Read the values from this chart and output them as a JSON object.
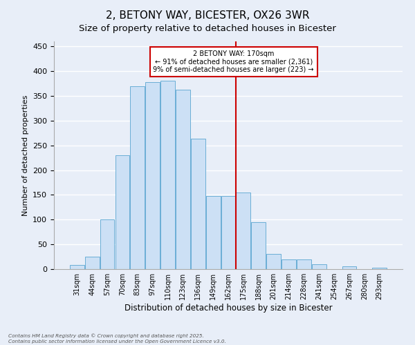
{
  "title": "2, BETONY WAY, BICESTER, OX26 3WR",
  "subtitle": "Size of property relative to detached houses in Bicester",
  "xlabel": "Distribution of detached houses by size in Bicester",
  "ylabel": "Number of detached properties",
  "categories": [
    "31sqm",
    "44sqm",
    "57sqm",
    "70sqm",
    "83sqm",
    "97sqm",
    "110sqm",
    "123sqm",
    "136sqm",
    "149sqm",
    "162sqm",
    "175sqm",
    "188sqm",
    "201sqm",
    "214sqm",
    "228sqm",
    "241sqm",
    "254sqm",
    "267sqm",
    "280sqm",
    "293sqm"
  ],
  "values": [
    8,
    25,
    100,
    230,
    370,
    378,
    380,
    362,
    263,
    148,
    148,
    155,
    95,
    30,
    20,
    20,
    10,
    0,
    5,
    0,
    3
  ],
  "bar_color": "#cce0f5",
  "bar_edge_color": "#6aaed6",
  "vline_index": 10,
  "annotation_text": "2 BETONY WAY: 170sqm\n← 91% of detached houses are smaller (2,361)\n9% of semi-detached houses are larger (223) →",
  "annotation_box_color": "#ffffff",
  "annotation_box_edge_color": "#cc0000",
  "vline_color": "#cc0000",
  "footer_line1": "Contains HM Land Registry data © Crown copyright and database right 2025.",
  "footer_line2": "Contains public sector information licensed under the Open Government Licence v3.0.",
  "ylim": [
    0,
    460
  ],
  "background_color": "#e8eef8",
  "plot_background": "#e8eef8",
  "grid_color": "#ffffff",
  "title_fontsize": 11,
  "tick_fontsize": 7,
  "ylabel_fontsize": 8,
  "xlabel_fontsize": 8.5
}
